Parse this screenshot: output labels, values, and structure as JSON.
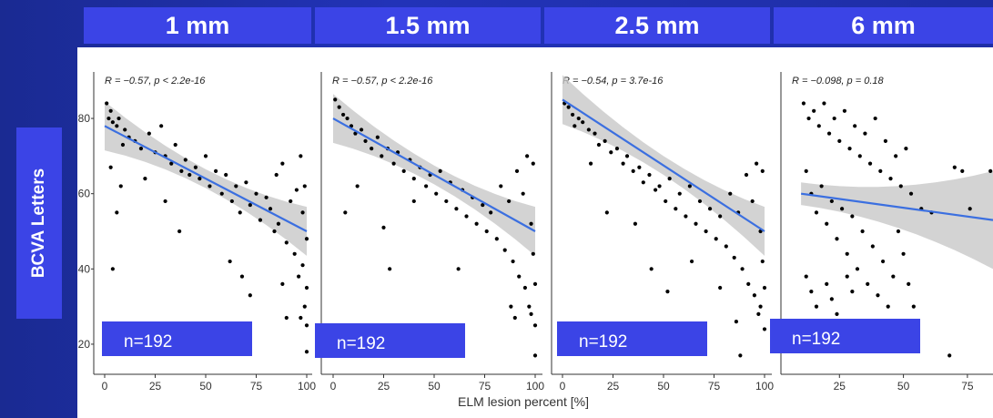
{
  "headers": [
    "1 mm",
    "1.5 mm",
    "2.5 mm",
    "6 mm"
  ],
  "y_axis_label": "BCVA Letters",
  "x_axis_label": "ELM lesion percent [%]",
  "n_labels": [
    "n=192",
    "n=192",
    "n=192",
    "n=192"
  ],
  "chart_data": [
    {
      "type": "scatter",
      "subtitle": "R = −0.57, p < 2.2e-16",
      "xlim": [
        0,
        100
      ],
      "ylim": [
        12,
        88
      ],
      "xticks": [
        "0",
        "25",
        "50",
        "75",
        "100"
      ],
      "yticks": [
        "80",
        "60",
        "40",
        "20"
      ],
      "fit_line": [
        [
          0,
          78
        ],
        [
          100,
          50
        ]
      ],
      "points": [
        [
          1,
          84
        ],
        [
          3,
          82
        ],
        [
          2,
          80
        ],
        [
          4,
          79
        ],
        [
          7,
          80
        ],
        [
          6,
          78
        ],
        [
          10,
          77
        ],
        [
          12,
          75
        ],
        [
          9,
          73
        ],
        [
          15,
          74
        ],
        [
          18,
          72
        ],
        [
          22,
          76
        ],
        [
          25,
          71
        ],
        [
          28,
          78
        ],
        [
          30,
          70
        ],
        [
          33,
          68
        ],
        [
          35,
          73
        ],
        [
          38,
          66
        ],
        [
          40,
          69
        ],
        [
          42,
          65
        ],
        [
          45,
          67
        ],
        [
          47,
          64
        ],
        [
          50,
          70
        ],
        [
          52,
          62
        ],
        [
          55,
          66
        ],
        [
          58,
          60
        ],
        [
          60,
          65
        ],
        [
          63,
          58
        ],
        [
          65,
          62
        ],
        [
          67,
          55
        ],
        [
          70,
          63
        ],
        [
          72,
          57
        ],
        [
          75,
          60
        ],
        [
          77,
          53
        ],
        [
          80,
          59
        ],
        [
          82,
          56
        ],
        [
          84,
          50
        ],
        [
          85,
          65
        ],
        [
          86,
          52
        ],
        [
          88,
          68
        ],
        [
          90,
          47
        ],
        [
          92,
          58
        ],
        [
          94,
          44
        ],
        [
          95,
          61
        ],
        [
          96,
          38
        ],
        [
          97,
          70
        ],
        [
          98,
          55
        ],
        [
          99,
          30
        ],
        [
          100,
          48
        ],
        [
          100,
          35
        ],
        [
          100,
          25
        ],
        [
          99,
          62
        ],
        [
          98,
          41
        ],
        [
          97,
          27
        ],
        [
          100,
          18
        ],
        [
          3,
          67
        ],
        [
          6,
          55
        ],
        [
          4,
          40
        ],
        [
          20,
          64
        ],
        [
          8,
          62
        ],
        [
          30,
          58
        ],
        [
          37,
          50
        ],
        [
          62,
          42
        ],
        [
          68,
          38
        ],
        [
          72,
          33
        ],
        [
          88,
          36
        ],
        [
          90,
          27
        ]
      ]
    },
    {
      "type": "scatter",
      "subtitle": "R = −0.57, p < 2.2e-16",
      "xlim": [
        0,
        100
      ],
      "ylim": [
        12,
        88
      ],
      "xticks": [
        "0",
        "25",
        "50",
        "75",
        "100"
      ],
      "yticks": [],
      "fit_line": [
        [
          0,
          80
        ],
        [
          100,
          50
        ]
      ],
      "points": [
        [
          1,
          85
        ],
        [
          3,
          83
        ],
        [
          5,
          81
        ],
        [
          7,
          80
        ],
        [
          9,
          78
        ],
        [
          11,
          76
        ],
        [
          14,
          77
        ],
        [
          16,
          74
        ],
        [
          19,
          72
        ],
        [
          22,
          75
        ],
        [
          24,
          70
        ],
        [
          27,
          72
        ],
        [
          30,
          68
        ],
        [
          32,
          71
        ],
        [
          35,
          66
        ],
        [
          38,
          69
        ],
        [
          40,
          64
        ],
        [
          43,
          67
        ],
        [
          46,
          62
        ],
        [
          48,
          65
        ],
        [
          51,
          60
        ],
        [
          53,
          66
        ],
        [
          56,
          58
        ],
        [
          58,
          63
        ],
        [
          61,
          56
        ],
        [
          64,
          61
        ],
        [
          66,
          54
        ],
        [
          69,
          59
        ],
        [
          71,
          52
        ],
        [
          74,
          57
        ],
        [
          76,
          50
        ],
        [
          78,
          55
        ],
        [
          81,
          48
        ],
        [
          83,
          62
        ],
        [
          85,
          45
        ],
        [
          87,
          58
        ],
        [
          89,
          42
        ],
        [
          91,
          66
        ],
        [
          92,
          38
        ],
        [
          94,
          60
        ],
        [
          95,
          35
        ],
        [
          96,
          70
        ],
        [
          97,
          30
        ],
        [
          98,
          52
        ],
        [
          99,
          44
        ],
        [
          100,
          25
        ],
        [
          100,
          36
        ],
        [
          99,
          68
        ],
        [
          98,
          28
        ],
        [
          100,
          17
        ],
        [
          6,
          55
        ],
        [
          12,
          62
        ],
        [
          25,
          51
        ],
        [
          28,
          40
        ],
        [
          40,
          58
        ],
        [
          62,
          40
        ],
        [
          88,
          30
        ],
        [
          90,
          27
        ]
      ]
    },
    {
      "type": "scatter",
      "subtitle": "R = −0.54, p = 3.7e-16",
      "xlim": [
        0,
        100
      ],
      "ylim": [
        12,
        88
      ],
      "xticks": [
        "0",
        "25",
        "50",
        "75",
        "100"
      ],
      "yticks": [],
      "fit_line": [
        [
          0,
          85
        ],
        [
          100,
          50
        ]
      ],
      "points": [
        [
          1,
          84
        ],
        [
          3,
          83
        ],
        [
          5,
          81
        ],
        [
          8,
          80
        ],
        [
          10,
          79
        ],
        [
          13,
          77
        ],
        [
          16,
          76
        ],
        [
          18,
          73
        ],
        [
          21,
          74
        ],
        [
          24,
          71
        ],
        [
          27,
          72
        ],
        [
          30,
          68
        ],
        [
          32,
          70
        ],
        [
          35,
          66
        ],
        [
          38,
          67
        ],
        [
          40,
          63
        ],
        [
          43,
          65
        ],
        [
          46,
          61
        ],
        [
          48,
          62
        ],
        [
          51,
          58
        ],
        [
          53,
          64
        ],
        [
          56,
          56
        ],
        [
          58,
          60
        ],
        [
          61,
          54
        ],
        [
          63,
          62
        ],
        [
          66,
          52
        ],
        [
          68,
          58
        ],
        [
          71,
          50
        ],
        [
          73,
          56
        ],
        [
          76,
          48
        ],
        [
          78,
          54
        ],
        [
          81,
          46
        ],
        [
          83,
          60
        ],
        [
          85,
          43
        ],
        [
          87,
          55
        ],
        [
          89,
          40
        ],
        [
          91,
          65
        ],
        [
          92,
          36
        ],
        [
          94,
          58
        ],
        [
          95,
          33
        ],
        [
          96,
          68
        ],
        [
          97,
          28
        ],
        [
          98,
          50
        ],
        [
          99,
          42
        ],
        [
          100,
          24
        ],
        [
          100,
          35
        ],
        [
          99,
          66
        ],
        [
          98,
          30
        ],
        [
          88,
          17
        ],
        [
          6,
          78
        ],
        [
          14,
          68
        ],
        [
          22,
          55
        ],
        [
          36,
          52
        ],
        [
          44,
          40
        ],
        [
          52,
          34
        ],
        [
          64,
          42
        ],
        [
          78,
          35
        ],
        [
          86,
          26
        ]
      ]
    },
    {
      "type": "scatter",
      "subtitle": "R = −0.098, p = 0.18",
      "xlim": [
        0,
        85
      ],
      "ylim": [
        12,
        88
      ],
      "xticks": [
        "25",
        "50",
        "75"
      ],
      "yticks": [],
      "fit_line": [
        [
          10,
          60
        ],
        [
          85,
          53
        ]
      ],
      "points": [
        [
          11,
          84
        ],
        [
          13,
          80
        ],
        [
          15,
          82
        ],
        [
          17,
          78
        ],
        [
          19,
          84
        ],
        [
          21,
          76
        ],
        [
          23,
          80
        ],
        [
          25,
          74
        ],
        [
          27,
          82
        ],
        [
          29,
          72
        ],
        [
          31,
          78
        ],
        [
          33,
          70
        ],
        [
          35,
          76
        ],
        [
          37,
          68
        ],
        [
          39,
          80
        ],
        [
          41,
          66
        ],
        [
          43,
          74
        ],
        [
          45,
          64
        ],
        [
          47,
          70
        ],
        [
          49,
          62
        ],
        [
          51,
          72
        ],
        [
          53,
          60
        ],
        [
          12,
          66
        ],
        [
          14,
          60
        ],
        [
          16,
          55
        ],
        [
          18,
          62
        ],
        [
          20,
          52
        ],
        [
          22,
          58
        ],
        [
          24,
          48
        ],
        [
          26,
          56
        ],
        [
          28,
          44
        ],
        [
          30,
          54
        ],
        [
          32,
          40
        ],
        [
          34,
          50
        ],
        [
          36,
          36
        ],
        [
          38,
          46
        ],
        [
          40,
          33
        ],
        [
          42,
          42
        ],
        [
          44,
          30
        ],
        [
          46,
          38
        ],
        [
          12,
          38
        ],
        [
          14,
          34
        ],
        [
          16,
          30
        ],
        [
          18,
          26
        ],
        [
          20,
          36
        ],
        [
          22,
          32
        ],
        [
          24,
          28
        ],
        [
          26,
          24
        ],
        [
          28,
          38
        ],
        [
          30,
          34
        ],
        [
          48,
          50
        ],
        [
          50,
          44
        ],
        [
          52,
          36
        ],
        [
          54,
          30
        ],
        [
          55,
          25
        ],
        [
          57,
          56
        ],
        [
          61,
          55
        ],
        [
          70,
          67
        ],
        [
          73,
          66
        ],
        [
          76,
          56
        ],
        [
          68,
          17
        ],
        [
          84,
          66
        ]
      ]
    }
  ]
}
